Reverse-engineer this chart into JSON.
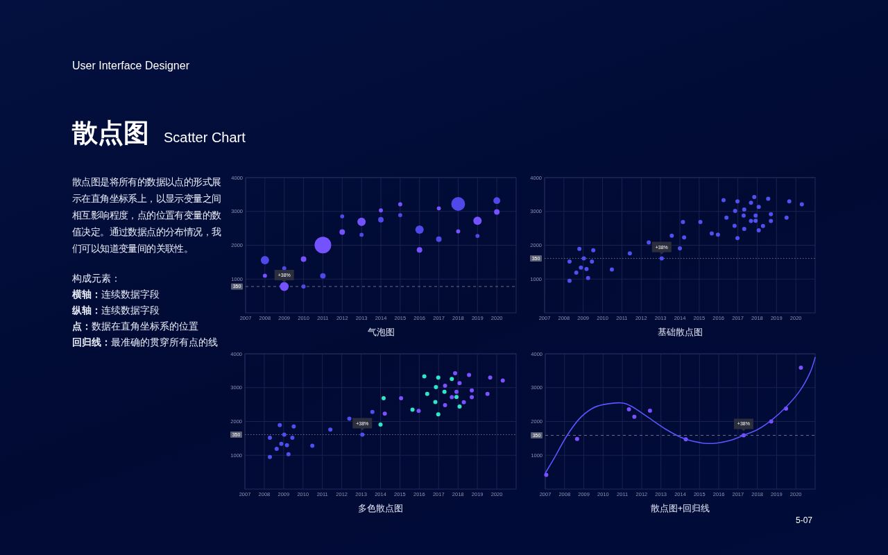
{
  "chart_data": [
    {
      "type": "other",
      "title": "散点图",
      "subtitle": "Scatter Chart",
      "annotations": [
        "User Interface Designer",
        "散点图是将所有的数据以点的形式展示在直角坐标系上，以显示变量之间相互影响程度，点的位置有变量的数值决定。通过数据点的分布情况，我们可以知道变量间的关联性。",
        "构成元素：",
        "横轴：连续数据字段",
        "纵轴：连续数据字段",
        "点：数据在直角坐标系的位置",
        "回归线：最准确的贯穿所有点的线",
        "5-07"
      ]
    },
    {
      "type": "bubble",
      "title": "气泡图",
      "xlim": [
        2007,
        2021
      ],
      "ylim": [
        0,
        4000
      ],
      "xticks": [
        2007,
        2008,
        2009,
        2010,
        2011,
        2012,
        2013,
        2014,
        2015,
        2016,
        2017,
        2018,
        2019,
        2020
      ],
      "yticks": [
        1000,
        2000,
        3000,
        4000
      ],
      "grid": true,
      "marker": "circle",
      "ref_lines": [
        {
          "axis": "y",
          "value": 780,
          "line_style": "dashed",
          "color": "#6a6f8a"
        }
      ],
      "annotations": [
        {
          "text": "+38%",
          "x": 2009,
          "y": 780
        },
        {
          "text": "350",
          "x": 2007,
          "y": 780
        }
      ],
      "series": [
        {
          "x": [
            2008,
            2008,
            2009,
            2009,
            2010,
            2010,
            2011,
            2011,
            2012,
            2012,
            2013,
            2013,
            2014,
            2014,
            2015,
            2015,
            2016,
            2016,
            2017,
            2017,
            2018,
            2018,
            2019,
            2019,
            2020,
            2020
          ],
          "values": [
            1560,
            1100,
            1320,
            780,
            1590,
            780,
            2005,
            1095,
            2855,
            2390,
            2690,
            2310,
            3030,
            2755,
            3210,
            2890,
            2460,
            1860,
            3090,
            2180,
            3220,
            2410,
            2725,
            2275,
            3320,
            2985
          ],
          "sizes": [
            0.25,
            0.06,
            0.06,
            0.29,
            0.11,
            0.06,
            1,
            0.11,
            0.06,
            0.11,
            0.25,
            0.06,
            0.06,
            0.11,
            0.06,
            0.06,
            0.25,
            0.11,
            0.06,
            0.11,
            0.69,
            0.06,
            0.25,
            0.06,
            0.17,
            0.11
          ],
          "colors": [
            "#5048e8",
            "#7452ff",
            "#5048e8",
            "#7452ff",
            "#7452ff",
            "#5048e8",
            "#7452ff",
            "#5048e8",
            "#5048e8",
            "#7452ff",
            "#7452ff",
            "#5048e8",
            "#7452ff",
            "#5048e8",
            "#7452ff",
            "#5048e8",
            "#5048e8",
            "#7452ff",
            "#7452ff",
            "#5048e8",
            "#5048e8",
            "#7452ff",
            "#7452ff",
            "#5048e8",
            "#5048e8",
            "#7452ff"
          ]
        }
      ]
    },
    {
      "type": "scatter",
      "title": "基础散点图",
      "xlim": [
        2007,
        2021
      ],
      "ylim": [
        0,
        4000
      ],
      "xticks": [
        2007,
        2008,
        2009,
        2010,
        2011,
        2012,
        2013,
        2014,
        2015,
        2016,
        2017,
        2018,
        2019,
        2020
      ],
      "yticks": [
        1000,
        2000,
        3000,
        4000
      ],
      "grid": true,
      "marker": "circle",
      "ref_lines": [
        {
          "axis": "y",
          "value": 1610,
          "line_style": "dotted",
          "color": "#6a6f8a"
        }
      ],
      "annotations": [
        {
          "text": "+38%",
          "x": 2013.06,
          "y": 1610
        },
        {
          "text": "350",
          "x": 2007,
          "y": 1610
        }
      ],
      "series": [
        {
          "color": "#5050f0",
          "x": [
            2008.29,
            2008.29,
            2008.64,
            2008.8,
            2008.88,
            2009.03,
            2009.17,
            2009.25,
            2009.45,
            2009.52,
            2010.48,
            2011.41,
            2012.39,
            2013.06,
            2013.58,
            2014.0,
            2014.16,
            2014.22,
            2015.06,
            2015.65,
            2015.97,
            2016.26,
            2016.41,
            2016.83,
            2016.86,
            2016.98,
            2016.98,
            2017.3,
            2017.33,
            2017.33,
            2017.68,
            2017.68,
            2017.85,
            2017.92,
            2017.92,
            2018.08,
            2018.08,
            2018.3,
            2018.57,
            2018.71,
            2018.71,
            2019.52,
            2019.66,
            2020.31
          ],
          "values": [
            1520,
            950,
            1190,
            1890,
            1340,
            1610,
            1300,
            1030,
            1520,
            1850,
            1280,
            1760,
            2080,
            1610,
            2280,
            1910,
            2685,
            2230,
            2685,
            2350,
            2315,
            3335,
            2815,
            2575,
            3015,
            3295,
            2210,
            2875,
            3055,
            2480,
            3255,
            2720,
            3425,
            2875,
            2725,
            3135,
            2440,
            2570,
            3375,
            2920,
            2720,
            2815,
            3295,
            3210
          ]
        }
      ]
    },
    {
      "type": "scatter",
      "title": "多色散点图",
      "xlim": [
        2007,
        2021
      ],
      "ylim": [
        0,
        4000
      ],
      "xticks": [
        2007,
        2008,
        2009,
        2010,
        2011,
        2012,
        2013,
        2014,
        2015,
        2016,
        2017,
        2018,
        2019,
        2020
      ],
      "yticks": [
        1000,
        2000,
        3000,
        4000
      ],
      "grid": true,
      "marker": "circle",
      "ref_lines": [
        {
          "axis": "y",
          "value": 1610,
          "line_style": "dotted",
          "color": "#6a6f8a"
        }
      ],
      "annotations": [
        {
          "text": "+38%",
          "x": 2013.06,
          "y": 1610
        },
        {
          "text": "350",
          "x": 2007,
          "y": 1610
        }
      ],
      "series": [
        {
          "x": [
            2008.29,
            2008.29,
            2008.64,
            2008.8,
            2008.88,
            2009.03,
            2009.17,
            2009.25,
            2009.45,
            2009.52,
            2010.48,
            2011.41,
            2012.39,
            2013.06,
            2013.58,
            2014.0,
            2014.16,
            2014.22,
            2015.06,
            2015.65,
            2015.97,
            2016.26,
            2016.41,
            2016.83,
            2016.86,
            2016.98,
            2016.98,
            2017.3,
            2017.33,
            2017.33,
            2017.68,
            2017.68,
            2017.85,
            2017.92,
            2017.92,
            2018.08,
            2018.08,
            2018.3,
            2018.57,
            2018.71,
            2018.71,
            2019.52,
            2019.66,
            2020.31
          ],
          "values": [
            1520,
            950,
            1190,
            1890,
            1340,
            1610,
            1300,
            1030,
            1520,
            1850,
            1280,
            1760,
            2080,
            1610,
            2280,
            1910,
            2685,
            2230,
            2685,
            2350,
            2315,
            3335,
            2815,
            2575,
            3015,
            3295,
            2210,
            2875,
            3055,
            2480,
            3255,
            2720,
            3425,
            2875,
            2725,
            3135,
            2440,
            2570,
            3375,
            2920,
            2720,
            2815,
            3295,
            3210
          ],
          "colors": [
            "#4f4ff0",
            "#4f4ff0",
            "#4f4ff0",
            "#4f4ff0",
            "#4f4ff0",
            "#4f4ff0",
            "#4f4ff0",
            "#4f4ff0",
            "#4f4ff0",
            "#4f4ff0",
            "#4f4ff0",
            "#4f4ff0",
            "#4f4ff0",
            "#4f4ff0",
            "#4f4ff0",
            "#2ee6c8",
            "#2ee6c8",
            "#7a50ff",
            "#7a50ff",
            "#2ee6c8",
            "#7a50ff",
            "#2ee6c8",
            "#2ee6c8",
            "#2ee6c8",
            "#2ee6c8",
            "#2ee6c8",
            "#2ee6c8",
            "#2ee6c8",
            "#7a50ff",
            "#7a50ff",
            "#2ee6c8",
            "#7a50ff",
            "#7a50ff",
            "#7a50ff",
            "#2ee6c8",
            "#7a50ff",
            "#2ee6c8",
            "#7a50ff",
            "#7a50ff",
            "#7a50ff",
            "#7a50ff",
            "#7a50ff",
            "#7a50ff",
            "#7a50ff"
          ]
        }
      ]
    },
    {
      "type": "scatter",
      "title": "散点图+回归线",
      "xlim": [
        2007,
        2021
      ],
      "ylim": [
        0,
        4000
      ],
      "xticks": [
        2007,
        2008,
        2009,
        2010,
        2011,
        2012,
        2013,
        2014,
        2015,
        2016,
        2017,
        2018,
        2019,
        2020
      ],
      "yticks": [
        1000,
        2000,
        3000,
        4000
      ],
      "grid": true,
      "line_style": "solid",
      "ref_lines": [
        {
          "axis": "y",
          "value": 1590,
          "line_style": "dashed",
          "color": "#6a6f8a"
        }
      ],
      "annotations": [
        {
          "text": "+38%",
          "x": 2017.29,
          "y": 1590
        },
        {
          "text": "350",
          "x": 2007,
          "y": 1590
        }
      ],
      "series": [
        {
          "type": "scatter",
          "marker": "circle",
          "color": "#7a50ff",
          "x": [
            2007.05,
            2008.65,
            2011.34,
            2011.62,
            2012.43,
            2014.29,
            2017.29,
            2018.72,
            2019.49,
            2020.26
          ],
          "values": [
            420,
            1480,
            2360,
            2140,
            2320,
            1470,
            1590,
            2000,
            2380,
            3590
          ]
        },
        {
          "type": "line",
          "marker": "none",
          "color": "#5a55ff",
          "x": [
            2007.0,
            2007.5,
            2008.1,
            2008.76,
            2009.42,
            2010.02,
            2010.93,
            2011.46,
            2012.29,
            2013.25,
            2014.21,
            2015.17,
            2015.89,
            2016.6,
            2017.29,
            2018.04,
            2018.76,
            2019.48,
            2020.2,
            2020.74,
            2021.0
          ],
          "values": [
            470,
            950,
            1560,
            2075,
            2380,
            2500,
            2550,
            2450,
            2140,
            1770,
            1490,
            1360,
            1360,
            1440,
            1590,
            1770,
            2050,
            2420,
            2900,
            3450,
            3890
          ]
        }
      ]
    }
  ]
}
